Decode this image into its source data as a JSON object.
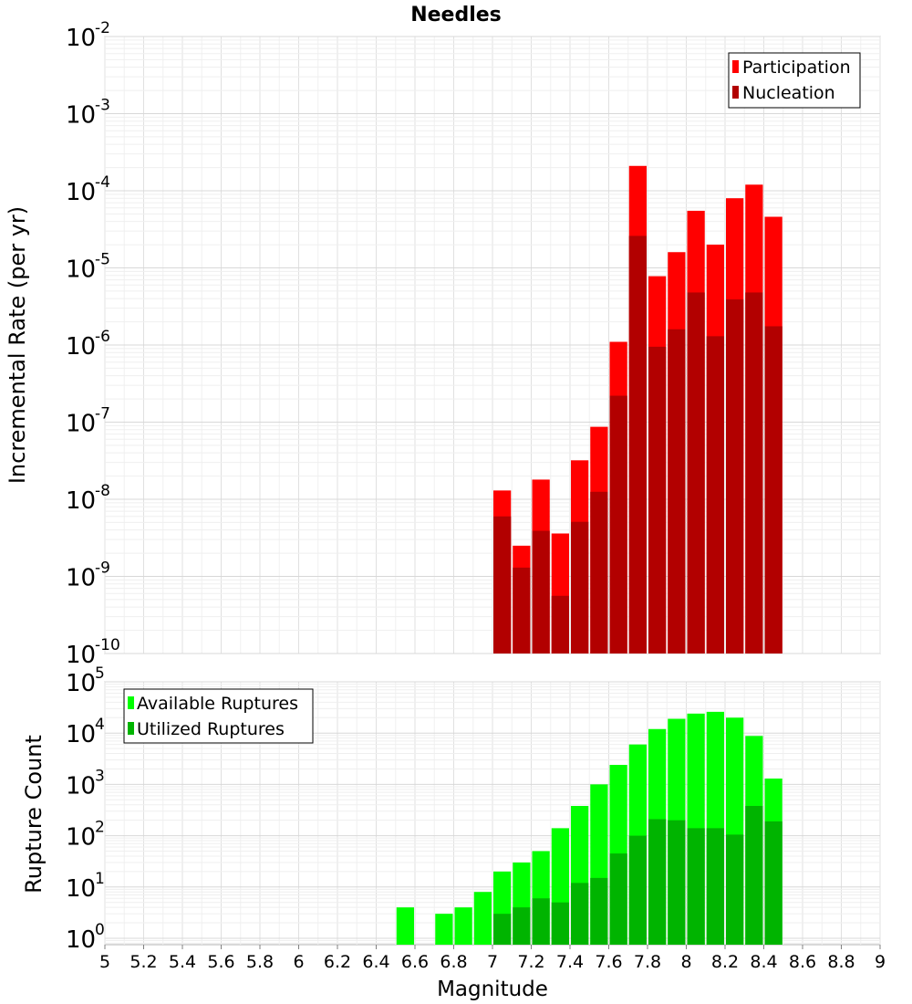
{
  "title": "Needles",
  "x_axis": {
    "label": "Magnitude",
    "range": [
      5,
      9
    ],
    "ticks": [
      "5",
      "5.2",
      "5.4",
      "5.6",
      "5.8",
      "6",
      "6.2",
      "6.4",
      "6.6",
      "6.8",
      "7",
      "7.2",
      "7.4",
      "7.6",
      "7.8",
      "8",
      "8.2",
      "8.4",
      "8.6",
      "8.8",
      "9"
    ]
  },
  "chart_data": [
    {
      "type": "bar",
      "panel": "top",
      "ylabel": "Incremental Rate (per yr)",
      "yscale": "log",
      "ylim": [
        1e-10,
        0.01
      ],
      "y_tick_exponents": [
        "-10",
        "-9",
        "-8",
        "-7",
        "-6",
        "-5",
        "-4",
        "-3",
        "-2"
      ],
      "bin_width": 0.1,
      "legend": {
        "position": "top-right"
      },
      "series": [
        {
          "name": "Participation",
          "color": "#ff0000",
          "x": [
            7.05,
            7.15,
            7.25,
            7.35,
            7.45,
            7.55,
            7.65,
            7.75,
            7.85,
            7.95,
            8.05,
            8.15,
            8.25,
            8.35,
            8.45
          ],
          "values": [
            1.3e-08,
            2.5e-09,
            1.8e-08,
            3.6e-09,
            3.2e-08,
            8.7e-08,
            1.1e-06,
            0.00021,
            7.8e-06,
            1.6e-05,
            5.5e-05,
            2e-05,
            8e-05,
            0.00012,
            4.6e-05
          ]
        },
        {
          "name": "Nucleation",
          "color": "#b20000",
          "x": [
            7.05,
            7.15,
            7.25,
            7.35,
            7.45,
            7.55,
            7.65,
            7.75,
            7.85,
            7.95,
            8.05,
            8.15,
            8.25,
            8.35,
            8.45
          ],
          "values": [
            6e-09,
            1.3e-09,
            3.9e-09,
            5.6e-10,
            5.1e-09,
            1.25e-08,
            2.2e-07,
            2.6e-05,
            9.5e-07,
            1.6e-06,
            4.8e-06,
            1.3e-06,
            3.9e-06,
            4.8e-06,
            1.75e-06
          ]
        }
      ]
    },
    {
      "type": "bar",
      "panel": "bottom",
      "ylabel": "Rupture Count",
      "yscale": "log",
      "ylim": [
        0.75,
        100000
      ],
      "y_tick_exponents": [
        "0",
        "1",
        "2",
        "3",
        "4",
        "5"
      ],
      "bin_width": 0.1,
      "legend": {
        "position": "top-left"
      },
      "series": [
        {
          "name": "Available Ruptures",
          "color": "#00ff00",
          "x": [
            6.55,
            6.75,
            6.85,
            6.95,
            7.05,
            7.15,
            7.25,
            7.35,
            7.45,
            7.55,
            7.65,
            7.75,
            7.85,
            7.95,
            8.05,
            8.15,
            8.25,
            8.35,
            8.45
          ],
          "values": [
            4,
            3,
            4,
            8,
            20,
            30,
            50,
            140,
            380,
            1000,
            2400,
            6000,
            12000,
            19000,
            24000,
            26000,
            20000,
            8800,
            1300
          ]
        },
        {
          "name": "Utilized Ruptures",
          "color": "#00b400",
          "x": [
            7.05,
            7.15,
            7.25,
            7.35,
            7.45,
            7.55,
            7.65,
            7.75,
            7.85,
            7.95,
            8.05,
            8.15,
            8.25,
            8.35,
            8.45
          ],
          "values": [
            3,
            4,
            6,
            5,
            12,
            15,
            45,
            100,
            210,
            200,
            140,
            140,
            105,
            380,
            190
          ]
        }
      ]
    }
  ]
}
